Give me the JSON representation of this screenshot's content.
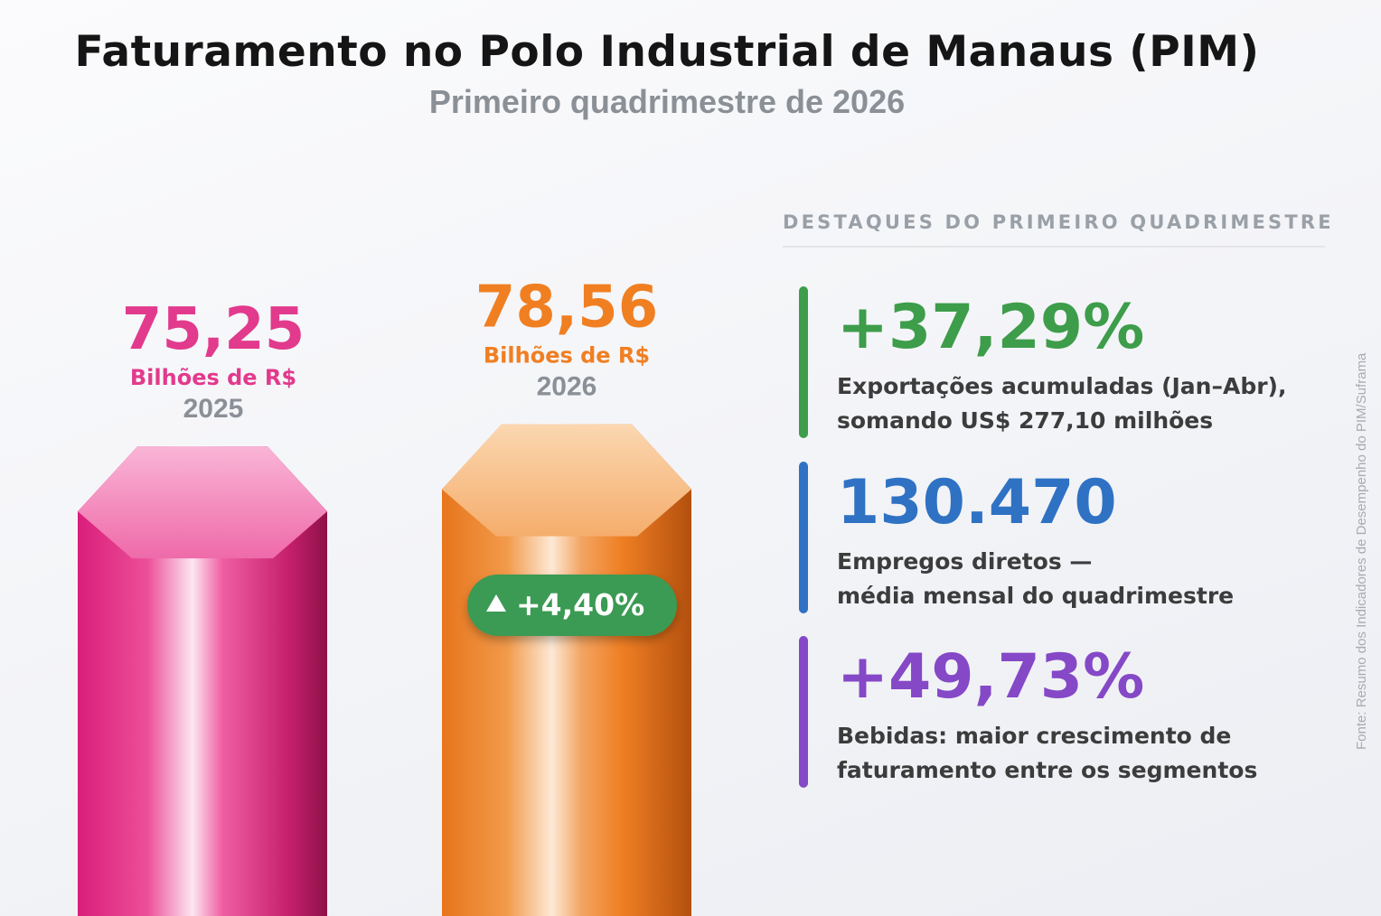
{
  "header": {
    "title": "Faturamento no Polo Industrial de Manaus (PIM)",
    "subtitle": "Primeiro quadrimestre de 2026"
  },
  "chart_data": {
    "type": "bar",
    "title": "Faturamento no Polo Industrial de Manaus (PIM)",
    "subtitle": "Primeiro quadrimestre de 2026",
    "categories": [
      "2025",
      "2026"
    ],
    "values": [
      75.25,
      78.56
    ],
    "value_labels": [
      "75,25",
      "78,56"
    ],
    "unit_labels": [
      "Bilhões de R$",
      "Bilhões de R$"
    ],
    "colors": [
      "#e23a8c",
      "#f07f22"
    ],
    "growth_label": "+4,40%",
    "growth_color": "#3b9a52",
    "growth_icon": "triangle-up-icon",
    "xlabel": "",
    "ylabel": ""
  },
  "highlights": {
    "heading": "DESTAQUES DO PRIMEIRO QUADRIMESTRE",
    "items": [
      {
        "value": "+37,29%",
        "description": "Exportações acumuladas (Jan–Abr),\nsomando US$ 277,10 milhões",
        "color": "#3d9d4a"
      },
      {
        "value": "130.470",
        "description": "Empregos diretos —\nmédia mensal do quadrimestre",
        "color": "#2f72c4"
      },
      {
        "value": "+49,73%",
        "description": "Bebidas: maior crescimento de\nfaturamento entre os segmentos",
        "color": "#8548c6"
      }
    ]
  },
  "source": "Fonte: Resumo dos Indicadores de Desempenho do PIM/Suframa"
}
